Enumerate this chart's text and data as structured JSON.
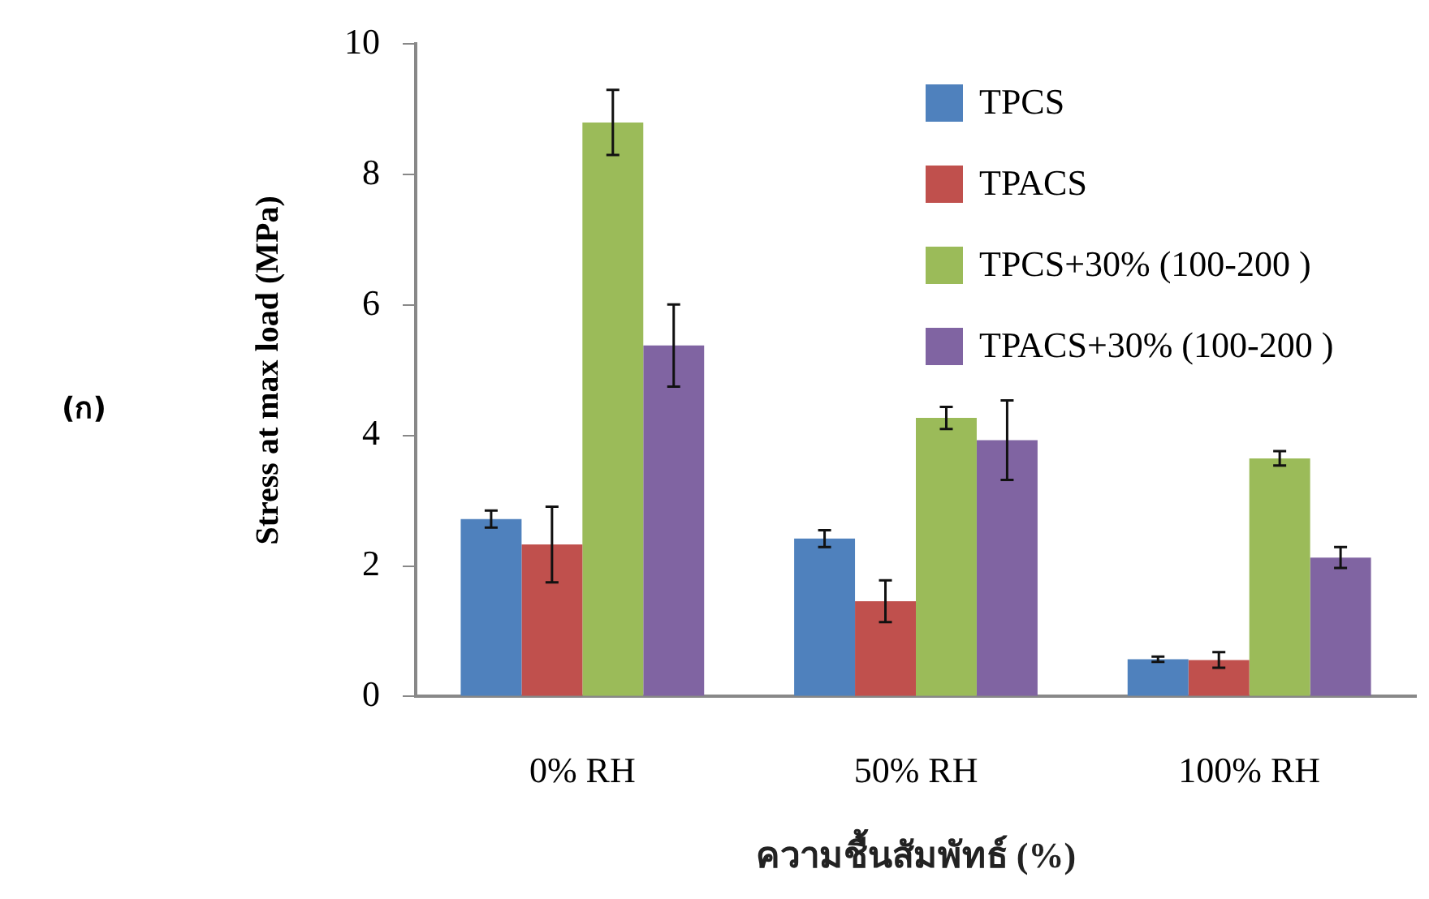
{
  "chart_data": {
    "type": "bar",
    "xlabel": "ความชื้นสัมพัทธ์ (%)",
    "ylabel": "Stress at max load (MPa)",
    "annotations": [
      "(ก)"
    ],
    "categories": [
      "0% RH",
      "50% RH",
      "100% RH"
    ],
    "series": [
      {
        "name": "TPCS",
        "color": "#4f81bd",
        "values": [
          2.72,
          2.42,
          0.57
        ],
        "errors": [
          0.13,
          0.13,
          0.04
        ]
      },
      {
        "name": "TPACS",
        "color": "#c0504d",
        "values": [
          2.33,
          1.46,
          0.56
        ],
        "errors": [
          0.58,
          0.32,
          0.12
        ]
      },
      {
        "name": "TPCS+30% (100-200 )",
        "color": "#9bbb59",
        "values": [
          8.8,
          4.27,
          3.65
        ],
        "errors": [
          0.5,
          0.17,
          0.11
        ]
      },
      {
        "name": "TPACS+30% (100-200 )",
        "color": "#8064a2",
        "values": [
          5.38,
          3.93,
          2.13
        ],
        "errors": [
          0.63,
          0.61,
          0.16
        ]
      }
    ],
    "ylim": [
      0,
      10
    ],
    "yticks": [
      0,
      2,
      4,
      6,
      8,
      10
    ],
    "grid": false,
    "legend": "top right"
  }
}
